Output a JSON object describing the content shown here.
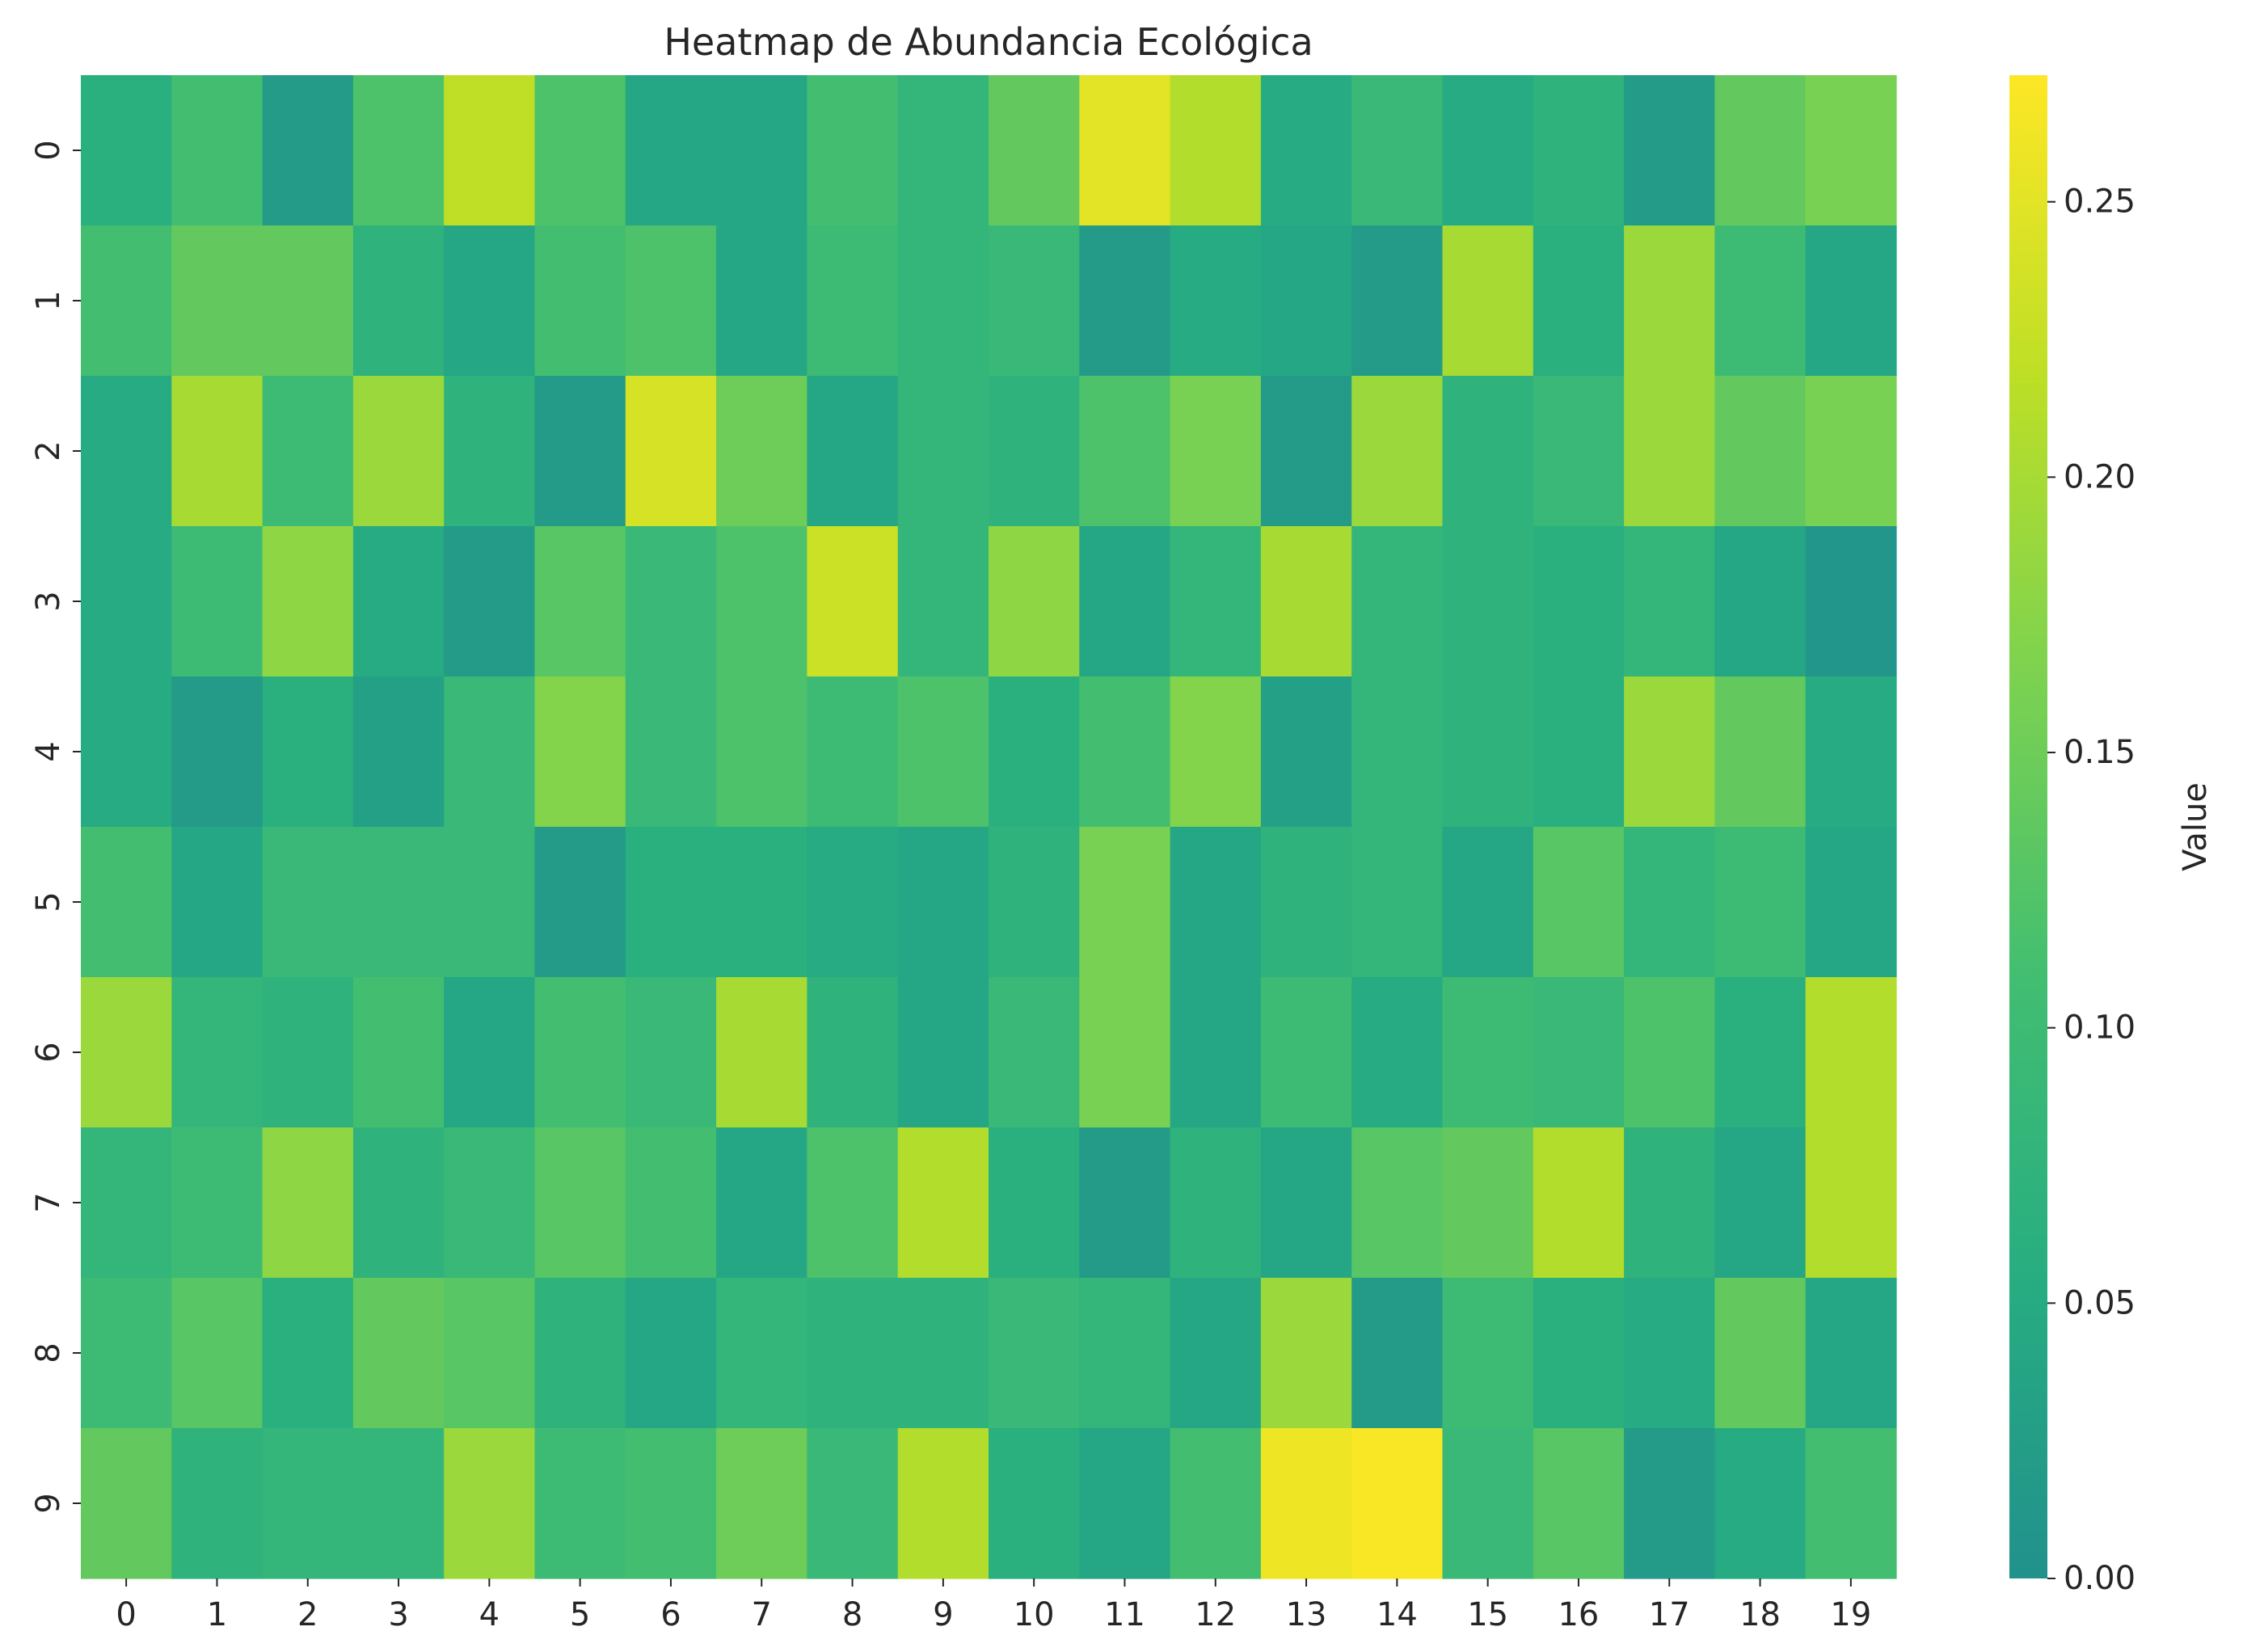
{
  "chart_data": {
    "type": "heatmap",
    "title": "Heatmap de Abundancia Ecológica",
    "xlabel": "",
    "ylabel": "",
    "x_tick_labels": [
      "0",
      "1",
      "2",
      "3",
      "4",
      "5",
      "6",
      "7",
      "8",
      "9",
      "10",
      "11",
      "12",
      "13",
      "14",
      "15",
      "16",
      "17",
      "18",
      "19"
    ],
    "y_tick_labels": [
      "0",
      "1",
      "2",
      "3",
      "4",
      "5",
      "6",
      "7",
      "8",
      "9"
    ],
    "colorbar": {
      "label": "Value",
      "range": [
        0.0,
        0.273
      ],
      "ticks": [
        0.0,
        0.05,
        0.1,
        0.15,
        0.2,
        0.25
      ],
      "tick_labels": [
        "0.00",
        "0.05",
        "0.10",
        "0.15",
        "0.20",
        "0.25"
      ],
      "colormap": "viridis (upper half)"
    },
    "grid": false,
    "values": [
      [
        0.06,
        0.11,
        0.02,
        0.12,
        0.22,
        0.12,
        0.04,
        0.04,
        0.11,
        0.08,
        0.14,
        0.25,
        0.21,
        0.05,
        0.09,
        0.05,
        0.07,
        0.02,
        0.14,
        0.16
      ],
      [
        0.11,
        0.14,
        0.14,
        0.07,
        0.04,
        0.11,
        0.12,
        0.04,
        0.1,
        0.08,
        0.09,
        0.02,
        0.05,
        0.04,
        0.02,
        0.2,
        0.06,
        0.19,
        0.1,
        0.04
      ],
      [
        0.05,
        0.2,
        0.1,
        0.19,
        0.07,
        0.02,
        0.24,
        0.15,
        0.04,
        0.08,
        0.07,
        0.12,
        0.16,
        0.02,
        0.19,
        0.07,
        0.09,
        0.19,
        0.14,
        0.16
      ],
      [
        0.05,
        0.1,
        0.18,
        0.05,
        0.02,
        0.13,
        0.09,
        0.12,
        0.23,
        0.08,
        0.18,
        0.04,
        0.08,
        0.2,
        0.08,
        0.07,
        0.06,
        0.08,
        0.04,
        0.01
      ],
      [
        0.05,
        0.02,
        0.06,
        0.03,
        0.09,
        0.17,
        0.09,
        0.12,
        0.1,
        0.12,
        0.06,
        0.11,
        0.17,
        0.03,
        0.08,
        0.07,
        0.06,
        0.19,
        0.14,
        0.05
      ],
      [
        0.11,
        0.04,
        0.09,
        0.09,
        0.09,
        0.02,
        0.06,
        0.06,
        0.05,
        0.04,
        0.07,
        0.16,
        0.04,
        0.07,
        0.08,
        0.04,
        0.13,
        0.08,
        0.1,
        0.04
      ],
      [
        0.19,
        0.08,
        0.07,
        0.11,
        0.04,
        0.11,
        0.09,
        0.2,
        0.07,
        0.04,
        0.09,
        0.16,
        0.04,
        0.1,
        0.05,
        0.1,
        0.09,
        0.12,
        0.06,
        0.21
      ],
      [
        0.08,
        0.1,
        0.18,
        0.07,
        0.09,
        0.13,
        0.11,
        0.04,
        0.12,
        0.21,
        0.06,
        0.02,
        0.07,
        0.04,
        0.13,
        0.14,
        0.21,
        0.07,
        0.04,
        0.21
      ],
      [
        0.1,
        0.13,
        0.06,
        0.14,
        0.13,
        0.07,
        0.04,
        0.08,
        0.07,
        0.07,
        0.09,
        0.08,
        0.04,
        0.19,
        0.02,
        0.1,
        0.06,
        0.05,
        0.14,
        0.04
      ],
      [
        0.14,
        0.07,
        0.08,
        0.08,
        0.19,
        0.1,
        0.11,
        0.15,
        0.09,
        0.21,
        0.06,
        0.04,
        0.11,
        0.26,
        0.27,
        0.09,
        0.13,
        0.02,
        0.05,
        0.11
      ]
    ]
  }
}
